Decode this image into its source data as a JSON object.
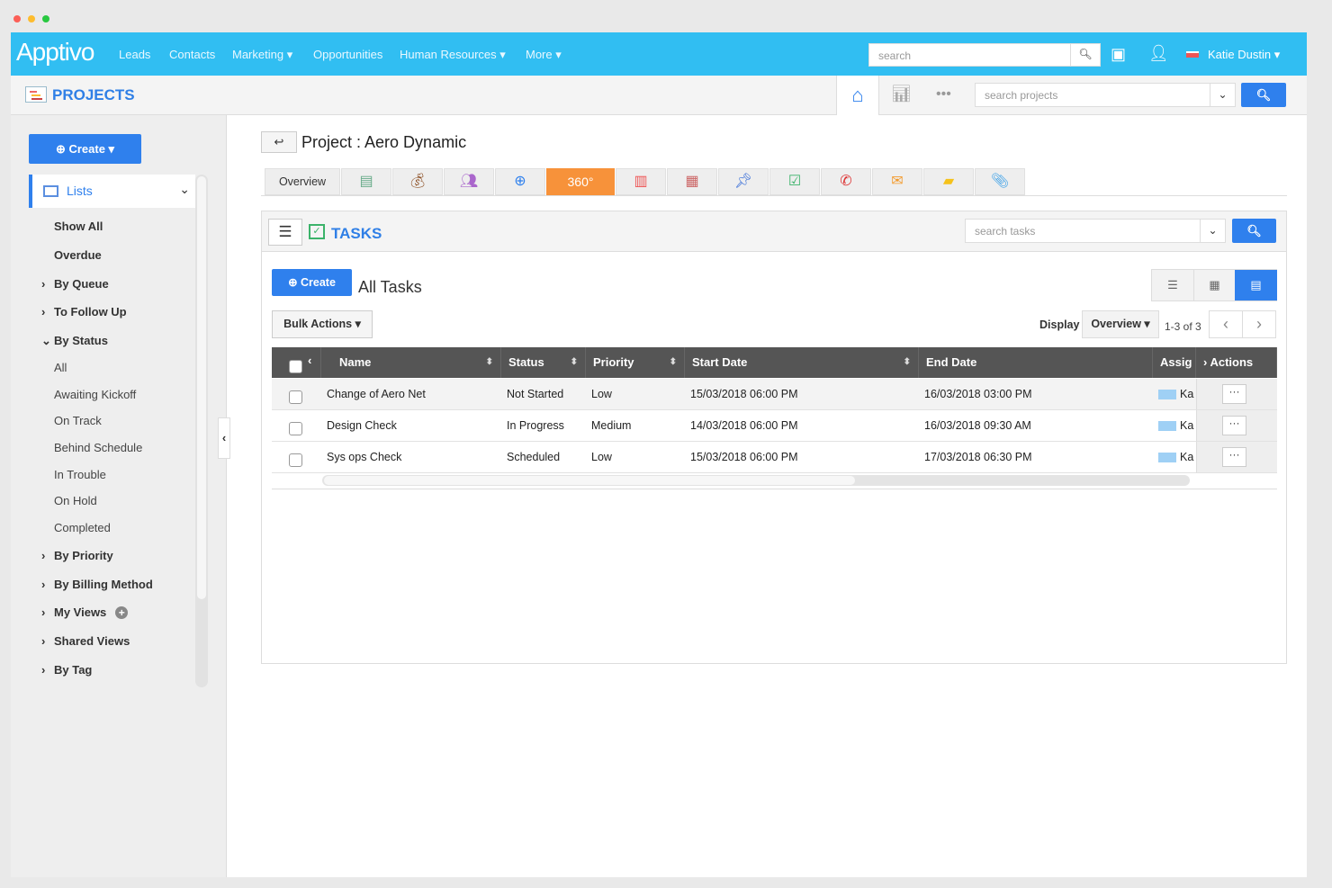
{
  "topbar": {
    "logo": "Apptivo",
    "nav": [
      {
        "label": "Leads"
      },
      {
        "label": "Contacts"
      },
      {
        "label": "Marketing ▾"
      },
      {
        "label": "Opportunities"
      },
      {
        "label": "Human Resources ▾"
      },
      {
        "label": "More ▾"
      }
    ],
    "search_placeholder": "search",
    "user": "Katie Dustin ▾"
  },
  "subbar": {
    "title": "PROJECTS",
    "search_placeholder": "search projects"
  },
  "sidebar": {
    "create": "Create ▾",
    "lists": "Lists",
    "items": [
      {
        "label": "Show All",
        "type": "item"
      },
      {
        "label": "Overdue",
        "type": "item"
      },
      {
        "label": "By Queue",
        "type": "group"
      },
      {
        "label": "To Follow Up",
        "type": "group"
      },
      {
        "label": "By Status",
        "type": "open"
      },
      {
        "label": "All",
        "type": "sub"
      },
      {
        "label": "Awaiting Kickoff",
        "type": "sub"
      },
      {
        "label": "On Track",
        "type": "sub"
      },
      {
        "label": "Behind Schedule",
        "type": "sub"
      },
      {
        "label": "In Trouble",
        "type": "sub"
      },
      {
        "label": "On Hold",
        "type": "sub"
      },
      {
        "label": "Completed",
        "type": "sub"
      },
      {
        "label": "By Priority",
        "type": "group"
      },
      {
        "label": "By Billing Method",
        "type": "group"
      },
      {
        "label": "My Views",
        "type": "group"
      },
      {
        "label": "Shared Views",
        "type": "group"
      },
      {
        "label": "By Tag",
        "type": "group"
      }
    ]
  },
  "project": {
    "title": "Project : Aero Dynamic",
    "tabs": [
      {
        "label": "Overview"
      },
      {
        "icon": "gantt-icon"
      },
      {
        "icon": "money-bag-icon"
      },
      {
        "icon": "team-icon"
      },
      {
        "icon": "target-icon"
      },
      {
        "label": "360°"
      },
      {
        "icon": "invoice-icon"
      },
      {
        "icon": "calendar-icon"
      },
      {
        "icon": "pin-icon"
      },
      {
        "icon": "task-icon"
      },
      {
        "icon": "phone-icon"
      },
      {
        "icon": "email-icon"
      },
      {
        "icon": "note-icon"
      },
      {
        "icon": "attachment-icon"
      }
    ]
  },
  "tasks": {
    "title": "TASKS",
    "search_placeholder": "search tasks",
    "create": "Create",
    "view_title": "All Tasks",
    "bulk": "Bulk Actions ▾",
    "display_label": "Display",
    "display_value": "Overview ▾",
    "pagination": "1-3 of 3",
    "columns": [
      "Name",
      "Status",
      "Priority",
      "Start Date",
      "End Date",
      "Assig",
      "Actions"
    ],
    "rows": [
      {
        "name": "Change of Aero Net",
        "status": "Not Started",
        "priority": "Low",
        "start": "15/03/2018 06:00 PM",
        "end": "16/03/2018 03:00 PM",
        "assignee": "Ka"
      },
      {
        "name": "Design Check",
        "status": "In Progress",
        "priority": "Medium",
        "start": "14/03/2018 06:00 PM",
        "end": "16/03/2018 09:30 AM",
        "assignee": "Ka"
      },
      {
        "name": "Sys ops Check",
        "status": "Scheduled",
        "priority": "Low",
        "start": "15/03/2018 06:00 PM",
        "end": "17/03/2018 06:30 PM",
        "assignee": "Ka"
      }
    ]
  },
  "colors": {
    "topbar": "#31bef2",
    "primary": "#2f80ed",
    "active_tab": "#f7923a",
    "header": "#555555"
  }
}
